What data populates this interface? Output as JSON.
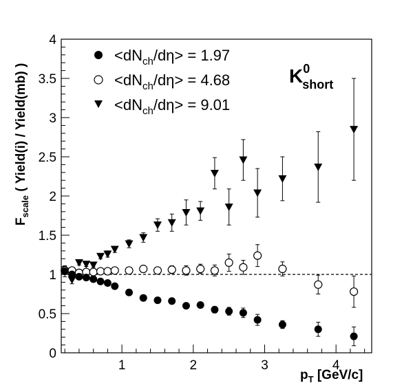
{
  "chart_data": {
    "type": "scatter",
    "xlabel": {
      "main": "p",
      "sub": "T",
      "rest": " [GeV/c]"
    },
    "ylabel": {
      "main": "F",
      "sub": "scale",
      "rest": " ( Yield(i) / Yield(mb) )"
    },
    "xlim": [
      0.15,
      4.5
    ],
    "ylim": [
      0,
      4
    ],
    "x_ticks": [
      1,
      2,
      3,
      4
    ],
    "y_ticks": [
      0,
      0.5,
      1,
      1.5,
      2,
      2.5,
      3,
      3.5,
      4
    ],
    "y_tick_labels": [
      "0",
      "0.5",
      "1",
      "1.5",
      "2",
      "2.5",
      "3",
      "3.5",
      "4"
    ],
    "x_tick_labels": [
      "1",
      "2",
      "3",
      "4"
    ],
    "reference_line": {
      "y": 1,
      "style": "dashed"
    },
    "annotation": {
      "main": "K",
      "sup": "0",
      "sub": "short"
    },
    "grid": false,
    "legend_position": "top-left",
    "series": [
      {
        "name": {
          "pre": "<dN",
          "sub": "ch",
          "post": "/dη> = 1.97"
        },
        "marker": "filled-circle",
        "x": [
          0.2,
          0.3,
          0.4,
          0.5,
          0.6,
          0.7,
          0.8,
          0.9,
          1.1,
          1.3,
          1.5,
          1.7,
          1.9,
          2.1,
          2.3,
          2.5,
          2.7,
          2.9,
          3.25,
          3.75,
          4.25
        ],
        "y": [
          1.04,
          1.0,
          0.97,
          0.96,
          0.94,
          0.91,
          0.89,
          0.85,
          0.77,
          0.7,
          0.67,
          0.66,
          0.6,
          0.61,
          0.55,
          0.53,
          0.51,
          0.42,
          0.36,
          0.3,
          0.21
        ],
        "yerr": [
          0.04,
          0.03,
          0.02,
          0.02,
          0.02,
          0.02,
          0.02,
          0.02,
          0.02,
          0.02,
          0.02,
          0.03,
          0.03,
          0.03,
          0.04,
          0.05,
          0.06,
          0.07,
          0.05,
          0.09,
          0.12
        ]
      },
      {
        "name": {
          "pre": "<dN",
          "sub": "ch",
          "post": "/dη> = 4.68"
        },
        "marker": "open-circle",
        "x": [
          0.2,
          0.3,
          0.4,
          0.5,
          0.6,
          0.7,
          0.8,
          0.9,
          1.1,
          1.3,
          1.5,
          1.7,
          1.9,
          2.1,
          2.3,
          2.5,
          2.7,
          2.9,
          3.25,
          3.75,
          4.25
        ],
        "y": [
          1.05,
          1.05,
          1.02,
          1.03,
          1.03,
          1.04,
          1.04,
          1.05,
          1.05,
          1.07,
          1.05,
          1.06,
          1.05,
          1.07,
          1.05,
          1.15,
          1.09,
          1.24,
          1.07,
          0.87,
          0.78
        ],
        "yerr": [
          0.05,
          0.03,
          0.02,
          0.02,
          0.02,
          0.02,
          0.02,
          0.02,
          0.02,
          0.03,
          0.04,
          0.05,
          0.06,
          0.06,
          0.07,
          0.11,
          0.09,
          0.14,
          0.09,
          0.12,
          0.2
        ]
      },
      {
        "name": {
          "pre": "<dN",
          "sub": "ch",
          "post": "/dη> = 9.01"
        },
        "marker": "filled-down-triangle",
        "x": [
          0.2,
          0.3,
          0.4,
          0.5,
          0.6,
          0.7,
          0.8,
          0.9,
          1.1,
          1.3,
          1.5,
          1.7,
          1.9,
          2.1,
          2.3,
          2.5,
          2.7,
          2.9,
          3.25,
          3.75,
          4.25
        ],
        "y": [
          1.04,
          0.93,
          1.15,
          1.13,
          1.12,
          1.23,
          1.26,
          1.32,
          1.39,
          1.47,
          1.63,
          1.66,
          1.79,
          1.81,
          2.29,
          1.86,
          2.46,
          2.04,
          2.22,
          2.37,
          2.85
        ],
        "yerr": [
          0.07,
          0.05,
          0.03,
          0.03,
          0.03,
          0.03,
          0.04,
          0.04,
          0.05,
          0.06,
          0.08,
          0.11,
          0.16,
          0.12,
          0.2,
          0.23,
          0.26,
          0.31,
          0.28,
          0.45,
          0.65
        ]
      }
    ]
  }
}
